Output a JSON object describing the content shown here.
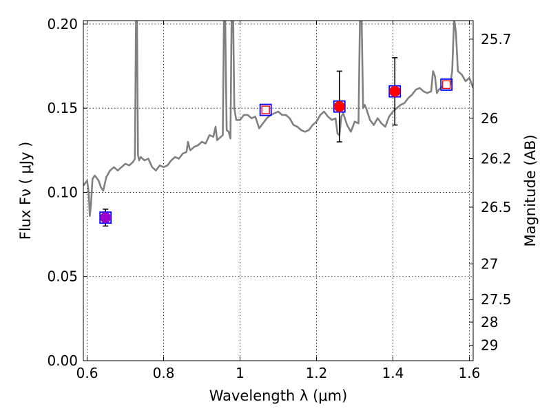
{
  "chart_data": {
    "type": "scatter",
    "xlabel": "Wavelength  λ (μm)",
    "ylabel": "Flux  Fν  ( μJy )",
    "ylabel_right": "Magnitude (AB)",
    "xlim": [
      0.59,
      1.61
    ],
    "ylim": [
      0.0,
      0.202
    ],
    "grid": true,
    "x_ticks": [
      {
        "value": 0.6,
        "label": "0.6"
      },
      {
        "value": 0.8,
        "label": "0.8"
      },
      {
        "value": 1.0,
        "label": "1"
      },
      {
        "value": 1.2,
        "label": "1.2"
      },
      {
        "value": 1.4,
        "label": "1.4"
      },
      {
        "value": 1.6,
        "label": "1.6"
      }
    ],
    "y_ticks": [
      {
        "value": 0.0,
        "label": "0.00"
      },
      {
        "value": 0.05,
        "label": "0.05"
      },
      {
        "value": 0.1,
        "label": "0.10"
      },
      {
        "value": 0.15,
        "label": "0.15"
      },
      {
        "value": 0.2,
        "label": "0.20"
      }
    ],
    "right_ticks": [
      {
        "flux": 0.191,
        "label": "25.7"
      },
      {
        "flux": 0.144,
        "label": "26"
      },
      {
        "flux": 0.12,
        "label": "26.2"
      },
      {
        "flux": 0.0912,
        "label": "26.5"
      },
      {
        "flux": 0.0575,
        "label": "27"
      },
      {
        "flux": 0.0363,
        "label": "27.5"
      },
      {
        "flux": 0.0229,
        "label": "28"
      },
      {
        "flux": 0.0091,
        "label": "29"
      }
    ],
    "spectrum": {
      "color": "#808080",
      "x": [
        0.59,
        0.6,
        0.604,
        0.607,
        0.61,
        0.614,
        0.62,
        0.63,
        0.636,
        0.642,
        0.65,
        0.66,
        0.67,
        0.68,
        0.69,
        0.7,
        0.71,
        0.72,
        0.725,
        0.728,
        0.73,
        0.733,
        0.736,
        0.74,
        0.75,
        0.76,
        0.77,
        0.78,
        0.79,
        0.8,
        0.81,
        0.82,
        0.83,
        0.84,
        0.85,
        0.86,
        0.864,
        0.868,
        0.87,
        0.88,
        0.89,
        0.9,
        0.91,
        0.92,
        0.93,
        0.936,
        0.94,
        0.95,
        0.955,
        0.958,
        0.961,
        0.965,
        0.97,
        0.975,
        0.978,
        0.982,
        0.985,
        0.99,
        1.0,
        1.01,
        1.02,
        1.03,
        1.04,
        1.05,
        1.06,
        1.07,
        1.08,
        1.09,
        1.1,
        1.11,
        1.12,
        1.13,
        1.14,
        1.15,
        1.16,
        1.17,
        1.18,
        1.19,
        1.2,
        1.21,
        1.22,
        1.23,
        1.24,
        1.25,
        1.255,
        1.26,
        1.265,
        1.27,
        1.28,
        1.29,
        1.3,
        1.31,
        1.314,
        1.318,
        1.322,
        1.326,
        1.33,
        1.34,
        1.35,
        1.36,
        1.37,
        1.38,
        1.39,
        1.4,
        1.41,
        1.42,
        1.43,
        1.44,
        1.45,
        1.46,
        1.47,
        1.48,
        1.49,
        1.5,
        1.505,
        1.51,
        1.515,
        1.52,
        1.53,
        1.54,
        1.55,
        1.555,
        1.56,
        1.565,
        1.57,
        1.58,
        1.59,
        1.6,
        1.61
      ],
      "y": [
        0.104,
        0.107,
        0.1,
        0.086,
        0.093,
        0.108,
        0.11,
        0.107,
        0.103,
        0.101,
        0.109,
        0.113,
        0.115,
        0.113,
        0.115,
        0.117,
        0.116,
        0.118,
        0.12,
        0.21,
        0.21,
        0.122,
        0.119,
        0.121,
        0.119,
        0.12,
        0.115,
        0.113,
        0.116,
        0.115,
        0.116,
        0.119,
        0.121,
        0.12,
        0.123,
        0.124,
        0.13,
        0.126,
        0.125,
        0.127,
        0.128,
        0.13,
        0.129,
        0.134,
        0.133,
        0.139,
        0.131,
        0.133,
        0.134,
        0.205,
        0.205,
        0.137,
        0.136,
        0.132,
        0.205,
        0.205,
        0.15,
        0.143,
        0.143,
        0.146,
        0.146,
        0.144,
        0.145,
        0.138,
        0.141,
        0.144,
        0.146,
        0.147,
        0.148,
        0.146,
        0.146,
        0.144,
        0.14,
        0.139,
        0.137,
        0.136,
        0.137,
        0.14,
        0.142,
        0.146,
        0.148,
        0.145,
        0.143,
        0.144,
        0.135,
        0.134,
        0.145,
        0.147,
        0.14,
        0.136,
        0.142,
        0.141,
        0.205,
        0.205,
        0.15,
        0.152,
        0.15,
        0.143,
        0.14,
        0.144,
        0.141,
        0.139,
        0.145,
        0.148,
        0.15,
        0.152,
        0.153,
        0.156,
        0.158,
        0.161,
        0.162,
        0.16,
        0.159,
        0.16,
        0.172,
        0.169,
        0.159,
        0.161,
        0.163,
        0.163,
        0.164,
        0.172,
        0.203,
        0.195,
        0.172,
        0.17,
        0.166,
        0.168,
        0.162
      ]
    },
    "points": [
      {
        "x": 0.648,
        "y": 0.085,
        "yerr_low": 0.08,
        "yerr_high": 0.09,
        "marker": "circle",
        "fill": "#9900cc",
        "box_color": "#0000ff"
      },
      {
        "x": 1.067,
        "y": 0.149,
        "marker": "open-square",
        "fill": "#ff0000",
        "box_color": "#0000ff"
      },
      {
        "x": 1.26,
        "y": 0.151,
        "yerr_low": 0.13,
        "yerr_high": 0.172,
        "marker": "circle",
        "fill": "#ff0000",
        "box_color": "#0000ff"
      },
      {
        "x": 1.405,
        "y": 0.16,
        "yerr_low": 0.14,
        "yerr_high": 0.18,
        "marker": "circle",
        "fill": "#ff0000",
        "box_color": "#0000ff"
      },
      {
        "x": 1.54,
        "y": 0.164,
        "marker": "open-square",
        "fill": "#ff0000",
        "box_color": "#0000ff"
      }
    ]
  }
}
